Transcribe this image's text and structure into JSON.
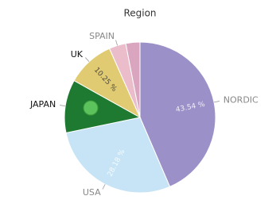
{
  "chart_data": {
    "type": "pie",
    "title": "Region",
    "categories": [
      "NORDIC",
      "USA",
      "JAPAN",
      "UK",
      "SPAIN",
      null
    ],
    "values": [
      43.54,
      28.18,
      11.4,
      10.25,
      3.6,
      3.03
    ],
    "value_labels": [
      "43.54 %",
      "28.18 %",
      null,
      "10.25 %",
      null,
      null
    ],
    "colors": [
      "#9c90c8",
      "#c6e4f6",
      "#1f7a31",
      "#e0cb72",
      "#ebbdcb",
      "#d9a5bf"
    ]
  }
}
